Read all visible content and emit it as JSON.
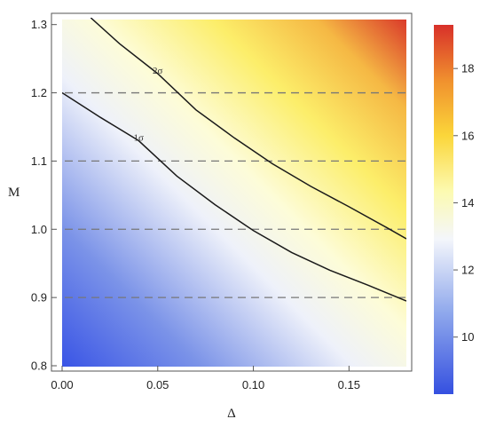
{
  "chart_data": {
    "type": "heatmap",
    "xlabel": "Δ",
    "ylabel": "M",
    "xlim": [
      0.0,
      0.18
    ],
    "ylim": [
      0.8,
      1.31
    ],
    "x_ticks": [
      "0.00",
      "0.05",
      "0.10",
      "0.15"
    ],
    "x_tick_values": [
      0.0,
      0.05,
      0.1,
      0.15
    ],
    "y_ticks": [
      "0.8",
      "0.9",
      "1.0",
      "1.1",
      "1.2",
      "1.3"
    ],
    "y_tick_values": [
      0.8,
      0.9,
      1.0,
      1.1,
      1.2,
      1.3
    ],
    "colorbar": {
      "range": [
        8.3,
        19.3
      ],
      "ticks": [
        "10",
        "12",
        "14",
        "16",
        "18"
      ],
      "tick_values": [
        10,
        12,
        14,
        16,
        18
      ],
      "colormap": [
        "#3550e0",
        "#8fa8ec",
        "#f4f6fb",
        "#fcfab0",
        "#fbd63a",
        "#f0902e",
        "#d8302a"
      ]
    },
    "reference_lines": {
      "style": "dashed",
      "color": "#777777",
      "y_values": [
        0.9,
        1.0,
        1.1,
        1.2
      ]
    },
    "contours": [
      {
        "label": "1σ",
        "points": [
          [
            0.0,
            1.2
          ],
          [
            0.02,
            1.164
          ],
          [
            0.04,
            1.13
          ],
          [
            0.06,
            1.078
          ],
          [
            0.08,
            1.036
          ],
          [
            0.1,
            0.998
          ],
          [
            0.12,
            0.966
          ],
          [
            0.14,
            0.94
          ],
          [
            0.16,
            0.918
          ],
          [
            0.18,
            0.895
          ]
        ],
        "label_at": [
          0.04,
          1.13
        ]
      },
      {
        "label": "2σ",
        "points": [
          [
            0.015,
            1.31
          ],
          [
            0.03,
            1.272
          ],
          [
            0.05,
            1.228
          ],
          [
            0.07,
            1.175
          ],
          [
            0.09,
            1.134
          ],
          [
            0.11,
            1.096
          ],
          [
            0.13,
            1.063
          ],
          [
            0.15,
            1.033
          ],
          [
            0.17,
            1.002
          ],
          [
            0.18,
            0.986
          ]
        ],
        "label_at": [
          0.05,
          1.228
        ]
      }
    ]
  }
}
